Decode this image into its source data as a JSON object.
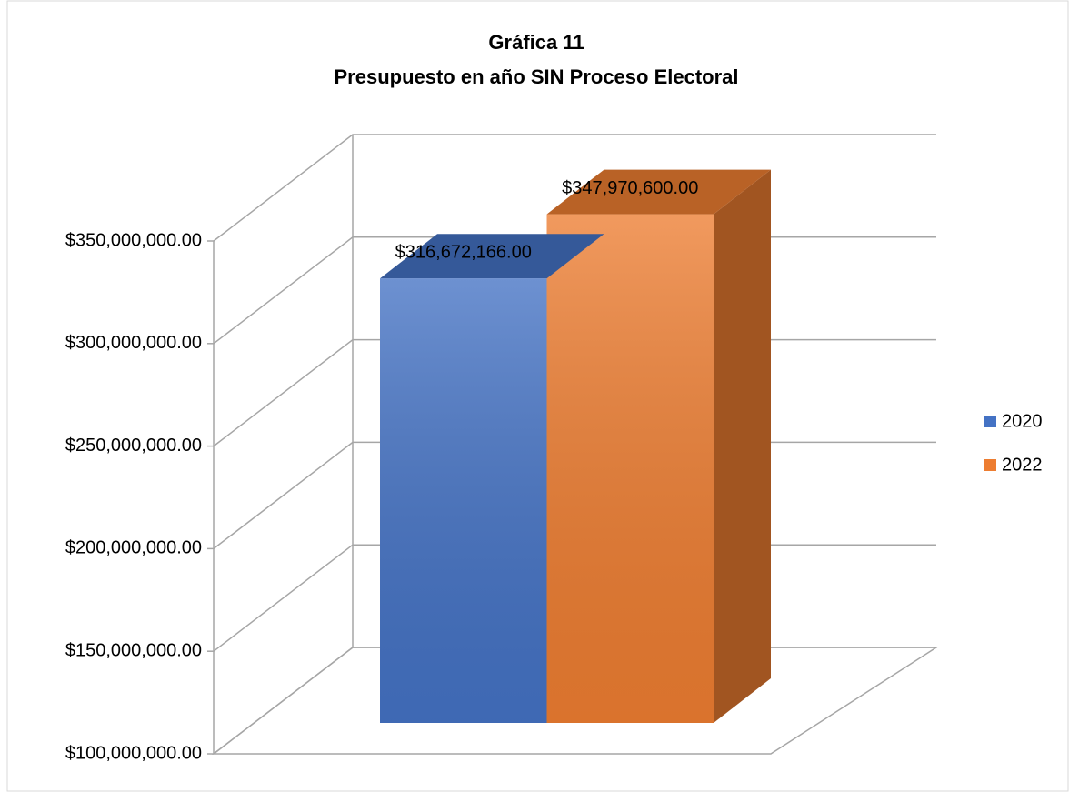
{
  "chart_data": {
    "type": "bar3d",
    "title": "Gráfica 11",
    "subtitle": "Presupuesto en año SIN Proceso Electoral",
    "categories": [
      null
    ],
    "series": [
      {
        "name": "2020",
        "color": "#4472c4",
        "values": [
          316672166
        ],
        "value_labels": [
          "$316,672,166.00"
        ]
      },
      {
        "name": "2022",
        "color": "#ed7d31",
        "values": [
          347970600
        ],
        "value_labels": [
          "$347,970,600.00"
        ]
      }
    ],
    "ylim": [
      100000000,
      350000000
    ],
    "yticks": [
      {
        "value": 100000000,
        "label": "$100,000,000.00"
      },
      {
        "value": 150000000,
        "label": "$150,000,000.00"
      },
      {
        "value": 200000000,
        "label": "$200,000,000.00"
      },
      {
        "value": 250000000,
        "label": "$250,000,000.00"
      },
      {
        "value": 300000000,
        "label": "$300,000,000.00"
      },
      {
        "value": 350000000,
        "label": "$350,000,000.00"
      }
    ],
    "grid": true,
    "legend": "right"
  }
}
